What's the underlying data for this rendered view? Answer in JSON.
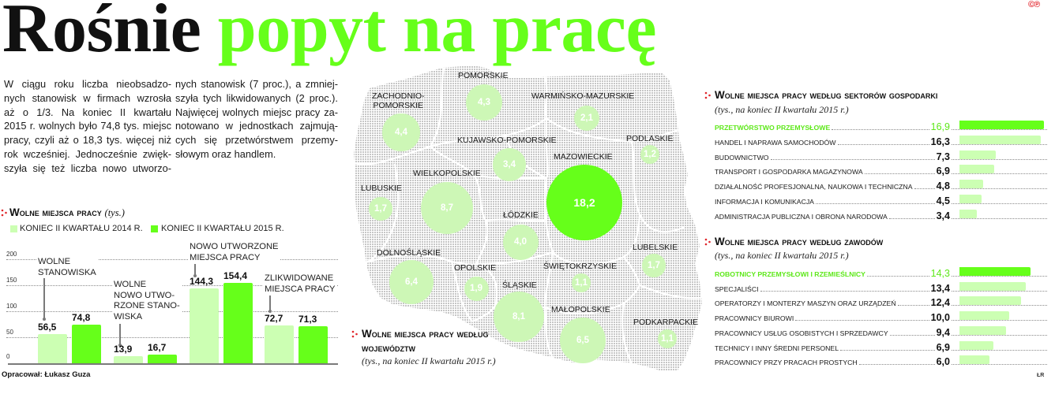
{
  "header": {
    "title_black": "Rośnie",
    "title_green": "popyt na pracę",
    "logo": "©℗"
  },
  "intro": {
    "col1": [
      "W ciągu roku liczba nieobsadzo-",
      "nych stanowisk w firmach wzrosła",
      "aż o 1/3. Na koniec II kwartału",
      "2015 r. wolnych było 74,8 tys. miejsc",
      "pracy, czyli aż o 18,3 tys. więcej niż",
      "rok wcześniej. Jednocześnie zwięk-",
      "szyła się też liczba nowo utworzo-"
    ],
    "col2": [
      "nych stanowisk (7 proc.), a zmniej-",
      "szyła tych likwidowanych (2 proc.).",
      "Najwięcej wolnych miejsc pracy za-",
      "notowano w jednostkach zajmują-",
      "cych się przetwórstwem przemy-",
      "słowym oraz handlem."
    ]
  },
  "credit": "Opracował: Łukasz Guza",
  "signature": "ŁR",
  "colors": {
    "accent_green": "#66ff1a",
    "light_green": "#ccffb3",
    "bubble_light": "#cdf7b6",
    "bullet_red": "#e0262b",
    "text": "#1a1a1a"
  },
  "chart_data": [
    {
      "type": "bar",
      "title": "Wolne miejsca pracy",
      "unit": "(tys.)",
      "categories": [
        "Wolne stanowiska",
        "Wolne nowo utworzone stanowiska",
        "Nowo utworzone miejsca pracy",
        "Zlikwidowane miejsca pracy"
      ],
      "category_label_lines": [
        [
          "WOLNE",
          "STANOWISKA"
        ],
        [
          "WOLNE",
          "NOWO UTWO-",
          "RZONE STANO-",
          "WISKA"
        ],
        [
          "NOWO UTWORZONE",
          "MIEJSCA PRACY"
        ],
        [
          "ZLIKWIDOWANE",
          "MIEJSCA PRACY"
        ]
      ],
      "series": [
        {
          "name": "KONIEC II KWARTAŁU 2014 R.",
          "values": [
            56.5,
            13.9,
            144.3,
            72.7
          ],
          "labels": [
            "56,5",
            "13,9",
            "144,3",
            "72,7"
          ],
          "color": "#ccffb3"
        },
        {
          "name": "KONIEC II KWARTAŁU 2015 R.",
          "values": [
            74.8,
            16.7,
            154.4,
            71.3
          ],
          "labels": [
            "74,8",
            "16,7",
            "154,4",
            "71,3"
          ],
          "color": "#66ff1a"
        }
      ],
      "xlabel": "",
      "ylabel": "",
      "ylim": [
        0,
        200
      ],
      "yticks": [
        "0",
        "50",
        "100",
        "150",
        "200"
      ],
      "grid": true,
      "legend_position": "top-left"
    },
    {
      "type": "scatter",
      "marker": "bubble (area proportional to value) on map of Poland",
      "title": "Wolne miejsca pracy według województw",
      "subtitle": "(tys., na koniec II kwartału 2015 r.)",
      "points": [
        {
          "region": "POMORSKIE",
          "value": 4.3,
          "label": "4,3"
        },
        {
          "region": "ZACHODNIOPOMORSKIE",
          "label_lines": [
            "ZACHODNIO-",
            "POMORSKIE"
          ],
          "value": 4.4,
          "label": "4,4"
        },
        {
          "region": "WARMIŃSKO-MAZURSKIE",
          "value": 2.1,
          "label": "2,1"
        },
        {
          "region": "KUJAWSKO-POMORSKIE",
          "value": 3.4,
          "label": "3,4"
        },
        {
          "region": "PODLASKIE",
          "value": 1.2,
          "label": "1,2"
        },
        {
          "region": "MAZOWIECKIE",
          "value": 18.2,
          "label": "18,2"
        },
        {
          "region": "LUBUSKIE",
          "value": 1.7,
          "label": "1,7"
        },
        {
          "region": "WIELKOPOLSKIE",
          "value": 8.7,
          "label": "8,7"
        },
        {
          "region": "ŁÓDZKIE",
          "value": 4.0,
          "label": "4,0"
        },
        {
          "region": "LUBELSKIE",
          "value": 1.7,
          "label": "1,7"
        },
        {
          "region": "DOLNOŚLĄSKIE",
          "value": 6.4,
          "label": "6,4"
        },
        {
          "region": "OPOLSKIE",
          "value": 1.9,
          "label": "1,9"
        },
        {
          "region": "ŚWIĘTOKRZYSKIE",
          "value": 1.1,
          "label": "1,1"
        },
        {
          "region": "ŚLĄSKIE",
          "value": 8.1,
          "label": "8,1"
        },
        {
          "region": "MAŁOPOLSKIE",
          "value": 6.5,
          "label": "6,5"
        },
        {
          "region": "PODKARPACKIE",
          "value": 1.1,
          "label": "1,1"
        }
      ]
    },
    {
      "type": "bar",
      "orientation": "horizontal",
      "title": "Wolne miejsca pracy według sektorów gospodarki",
      "subtitle": "(tys., na koniec II kwartału 2015 r.)",
      "categories": [
        "PRZETWÓRSTWO PRZEMYSŁOWE",
        "HANDEL I NAPRAWA SAMOCHODÓW",
        "BUDOWNICTWO",
        "TRANSPORT I GOSPODARKA MAGAZYNOWA",
        "DZIAŁALNOŚĆ PROFESJONALNA, NAUKOWA I TECHNICZNA",
        "INFORMACJA I KOMUNIKACJA",
        "ADMINISTRACJA PUBLICZNA I OBRONA NARODOWA"
      ],
      "values": [
        16.9,
        16.3,
        7.3,
        6.9,
        4.8,
        4.5,
        3.4
      ],
      "labels": [
        "16,9",
        "16,3",
        "7,3",
        "6,9",
        "4,8",
        "4,5",
        "3,4"
      ],
      "highlight_index": 0
    },
    {
      "type": "bar",
      "orientation": "horizontal",
      "title": "Wolne miejsca pracy według zawodów",
      "subtitle": "(tys., na koniec II kwartału 2015 r.)",
      "categories": [
        "ROBOTNICY PRZEMYSŁOWI I RZEMIEŚLNICY",
        "SPECJALIŚCI",
        "OPERATORZY I MONTERZY MASZYN ORAZ URZĄDZEŃ",
        "PRACOWNICY BIUROWI",
        "PRACOWNICY USŁUG OSOBISTYCH I SPRZEDAWCY",
        "TECHNICY I INNY ŚREDNI PERSONEL",
        "PRACOWNICY PRZY PRACACH PROSTYCH"
      ],
      "values": [
        14.3,
        13.4,
        12.4,
        10.0,
        9.4,
        6.9,
        6.0
      ],
      "labels": [
        "14,3",
        "13,4",
        "12,4",
        "10,0",
        "9,4",
        "6,9",
        "6,0"
      ],
      "highlight_index": 0
    }
  ]
}
